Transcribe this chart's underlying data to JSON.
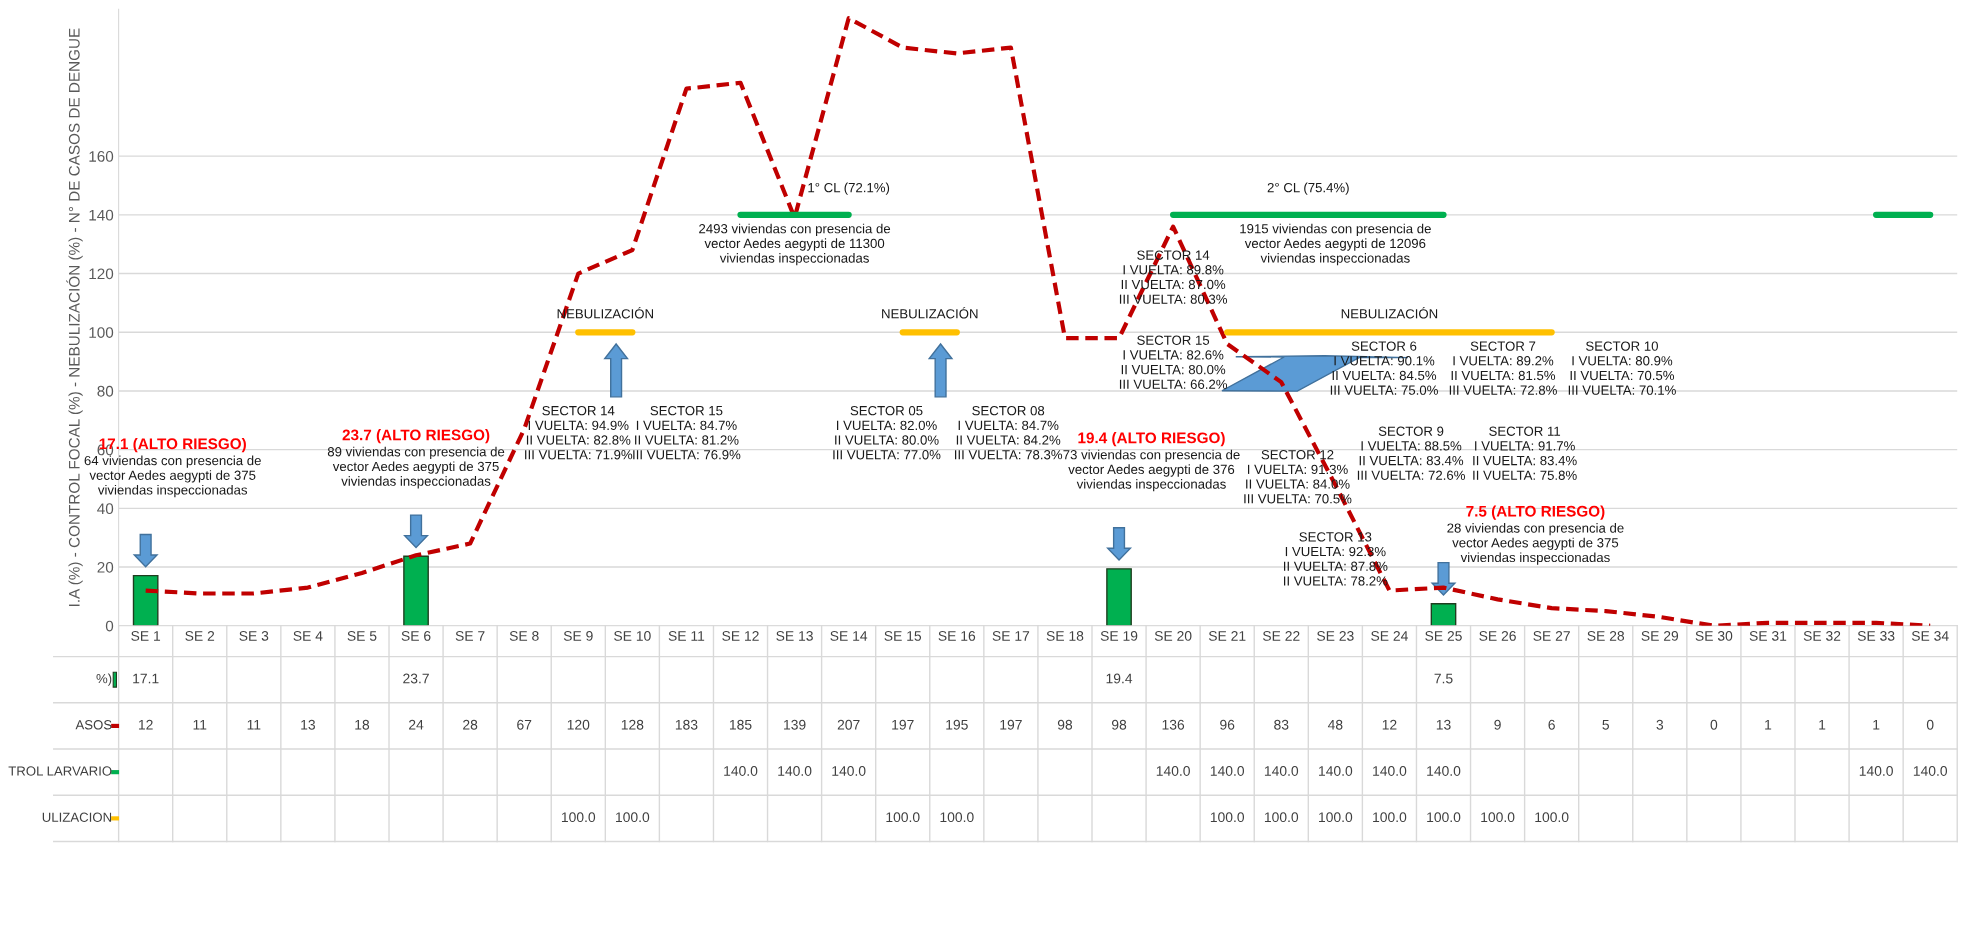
{
  "chart_data": {
    "type": "line",
    "ylabel": "I.A (%) - CONTROL FOCAL (%) - NEBULIZACIÓN (%) - N° DE CASOS DE DENGUE",
    "categories": [
      "SE 1",
      "SE 2",
      "SE 3",
      "SE 4",
      "SE 5",
      "SE 6",
      "SE 7",
      "SE 8",
      "SE 9",
      "SE 10",
      "SE 11",
      "SE 12",
      "SE 13",
      "SE 14",
      "SE 15",
      "SE 16",
      "SE 17",
      "SE 18",
      "SE 19",
      "SE 20",
      "SE 21",
      "SE 22",
      "SE 23",
      "SE 24",
      "SE 25",
      "SE 26",
      "SE 27",
      "SE 28",
      "SE 29",
      "SE 30",
      "SE 31",
      "SE 32",
      "SE 33",
      "SE 34"
    ],
    "ylim": [
      0,
      210
    ],
    "yticks": [
      0,
      20,
      40,
      60,
      80,
      100,
      120,
      140,
      160
    ],
    "grid": "y",
    "legend": "bottom",
    "series": [
      {
        "name": "%)",
        "type": "bar",
        "color": "#00b050",
        "values": [
          17.1,
          null,
          null,
          null,
          null,
          23.7,
          null,
          null,
          null,
          null,
          null,
          null,
          null,
          null,
          null,
          null,
          null,
          null,
          19.4,
          null,
          null,
          null,
          null,
          null,
          7.5,
          null,
          null,
          null,
          null,
          null,
          null,
          null,
          null,
          null
        ],
        "value_labels": [
          "17.1",
          null,
          null,
          null,
          null,
          "23.7",
          null,
          null,
          null,
          null,
          null,
          null,
          null,
          null,
          null,
          null,
          null,
          null,
          "19.4",
          null,
          null,
          null,
          null,
          null,
          "7.5",
          null,
          null,
          null,
          null,
          null,
          null,
          null,
          null,
          null
        ]
      },
      {
        "name": "ASOS",
        "line_style": "dashed",
        "color": "#c00000",
        "values": [
          12,
          11,
          11,
          13,
          18,
          24,
          28,
          67,
          120,
          128,
          183,
          185,
          139,
          207,
          197,
          195,
          197,
          98,
          98,
          136,
          96,
          83,
          48,
          12,
          13,
          9,
          6,
          5,
          3,
          0,
          1,
          1,
          1,
          0
        ],
        "value_labels": [
          "12",
          "11",
          "11",
          "13",
          "18",
          "24",
          "28",
          "67",
          "120",
          "128",
          "183",
          "185",
          "139",
          "207",
          "197",
          "195",
          "197",
          "98",
          "98",
          "136",
          "96",
          "83",
          "48",
          "12",
          "13",
          "9",
          "6",
          "5",
          "3",
          "0",
          "1",
          "1",
          "1",
          "0"
        ]
      },
      {
        "name": "TROL LARVARIO",
        "line_style": "solid",
        "color": "#00b050",
        "values": [
          null,
          null,
          null,
          null,
          null,
          null,
          null,
          null,
          null,
          null,
          null,
          140,
          140,
          140,
          null,
          null,
          null,
          null,
          null,
          140,
          140,
          140,
          140,
          140,
          140,
          null,
          null,
          null,
          null,
          null,
          null,
          null,
          140,
          140
        ],
        "value_labels": [
          null,
          null,
          null,
          null,
          null,
          null,
          null,
          null,
          null,
          null,
          null,
          "140.0",
          "140.0",
          "140.0",
          null,
          null,
          null,
          null,
          null,
          "140.0",
          "140.0",
          "140.0",
          "140.0",
          "140.0",
          "140.0",
          null,
          null,
          null,
          null,
          null,
          null,
          null,
          "140.0",
          "140.0"
        ]
      },
      {
        "name": "ULIZACION",
        "line_style": "solid",
        "color": "#ffc000",
        "values": [
          null,
          null,
          null,
          null,
          null,
          null,
          null,
          null,
          100,
          100,
          null,
          null,
          null,
          null,
          100,
          100,
          null,
          null,
          null,
          null,
          100,
          100,
          100,
          100,
          100,
          100,
          100,
          null,
          null,
          null,
          null,
          null,
          null,
          null
        ],
        "value_labels": [
          null,
          null,
          null,
          null,
          null,
          null,
          null,
          null,
          "100.0",
          "100.0",
          null,
          null,
          null,
          null,
          "100.0",
          "100.0",
          null,
          null,
          null,
          null,
          "100.0",
          "100.0",
          "100.0",
          "100.0",
          "100.0",
          "100.0",
          "100.0",
          null,
          null,
          null,
          null,
          null,
          null,
          null
        ]
      }
    ],
    "annotations": [
      "17.1 (ALTO RIESGO)",
      "64 viviendas con presencia de\nvector Aedes aegypti de 375\nviviendas inspeccionadas",
      "23.7 (ALTO RIESGO)",
      "89 viviendas con presencia de\nvector Aedes aegypti de 375\nviviendas inspeccionadas",
      "NEBULIZACIÓN",
      "SECTOR 14\nI VUELTA: 94.9%\nII VUELTA: 82.8%\nIII VUELTA: 71.9%",
      "SECTOR 15\nI VUELTA: 84.7%\nII VUELTA: 81.2%\nIII VUELTA: 76.9%",
      "1° CL (72.1%)",
      "2493 viviendas con presencia de\nvector Aedes aegypti de 11300\nviviendas inspeccionadas",
      "NEBULIZACIÓN",
      "SECTOR 05\nI VUELTA: 82.0%\nII VUELTA: 80.0%\nIII VUELTA: 77.0%",
      "SECTOR 08\nI VUELTA: 84.7%\nII VUELTA: 84.2%\nIII VUELTA: 78.3%",
      "19.4 (ALTO RIESGO)",
      "73 viviendas con presencia de\nvector Aedes aegypti de 376\nviviendas inspeccionadas",
      "SECTOR 14\nI VUELTA: 89.8%\nII VUELTA: 87.0%\nIII VUELTA: 80.3%",
      "SECTOR 15\nI VUELTA: 82.6%\nII VUELTA: 80.0%\nIII VUELTA: 66.2%",
      "2° CL (75.4%)",
      "1915 viviendas con presencia de\nvector Aedes aegypti de 12096\nviviendas inspeccionadas",
      "NEBULIZACIÓN",
      "SECTOR 12\nI VUELTA: 91.3%\nII VUELTA: 84.0%\nIII VUELTA: 70.5%",
      "SECTOR 6\nI VUELTA: 90.1%\nII VUELTA: 84.5%\nIII VUELTA: 75.0%",
      "SECTOR 7\nI VUELTA: 89.2%\nII VUELTA: 81.5%\nIII VUELTA: 72.8%",
      "SECTOR 10\nI VUELTA: 80.9%\nII VUELTA: 70.5%\nIII VUELTA: 70.1%",
      "SECTOR 9\nI VUELTA: 88.5%\nII VUELTA: 83.4%\nIII VUELTA: 72.6%",
      "SECTOR 11\nI VUELTA: 91.7%\nII VUELTA: 83.4%\nII VUELTA: 75.8%",
      "SECTOR 13\nI VUELTA: 92.3%\nII VUELTA: 87.8%\nII VUELTA: 78.2%",
      "7.5 (ALTO RIESGO)",
      "28 viviendas con presencia de\nvector Aedes aegypti de 375\nviviendas inspeccionadas"
    ]
  }
}
